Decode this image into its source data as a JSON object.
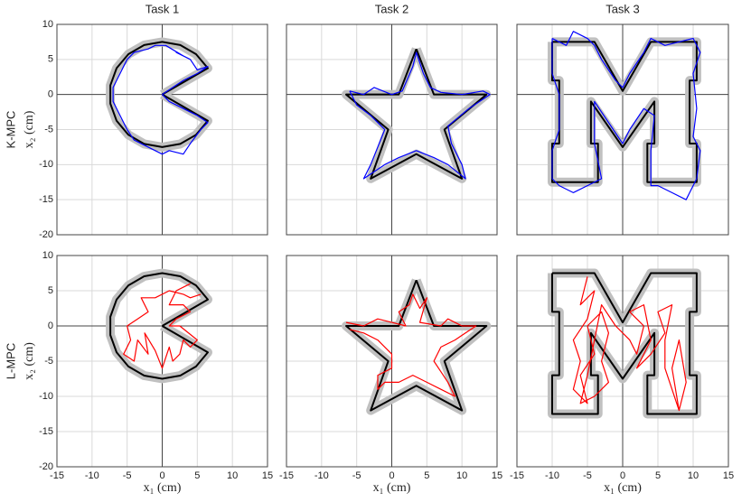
{
  "chart_data": [
    {
      "type": "line",
      "title": "Task 1",
      "row_label": "K-MPC",
      "ylabel": "x₂ (cm)",
      "xlim": [
        -15,
        15
      ],
      "ylim": [
        -20,
        10
      ],
      "xticks": [
        -15,
        -10,
        -5,
        0,
        5,
        10,
        15
      ],
      "yticks": [
        -20,
        -15,
        -10,
        -5,
        0,
        5,
        10
      ],
      "grid": true,
      "series": [
        {
          "color": "#000000",
          "band_color": "#c0c0c0",
          "x": [
            0,
            6.5,
            4.82,
            2.57,
            0,
            -2.57,
            -4.82,
            -6.5,
            -7.39,
            -7.39,
            -6.5,
            -4.82,
            -2.57,
            0,
            2.57,
            4.82,
            6.5,
            0
          ],
          "values": [
            0,
            3.75,
            5.75,
            7.05,
            7.5,
            7.05,
            5.75,
            3.75,
            1.3,
            -1.3,
            -3.75,
            -5.75,
            -7.05,
            -7.5,
            -7.05,
            -5.75,
            -3.75,
            0
          ]
        },
        {
          "color": "#0000ff",
          "x": [
            0,
            3,
            5,
            6.5,
            5,
            4,
            2,
            3,
            0.5,
            -1,
            -2,
            -4,
            -5,
            -6,
            -7,
            -7,
            -6,
            -5,
            -4,
            -2,
            0,
            1,
            3,
            4,
            5.5,
            6.5,
            5,
            3,
            1,
            0
          ],
          "values": [
            0,
            2,
            3,
            4,
            3.5,
            5,
            6,
            5.5,
            7,
            7,
            6.5,
            6,
            5,
            3,
            1,
            -1,
            -3,
            -5,
            -6.5,
            -7.5,
            -8.5,
            -8,
            -8.5,
            -7,
            -5,
            -4,
            -3,
            -2,
            -1,
            0
          ]
        }
      ]
    },
    {
      "type": "line",
      "title": "Task 2",
      "xlim": [
        -15,
        15
      ],
      "ylim": [
        -20,
        10
      ],
      "xticks": [
        -15,
        -10,
        -5,
        0,
        5,
        10,
        15
      ],
      "yticks": [
        -20,
        -15,
        -10,
        -5,
        0,
        5,
        10
      ],
      "grid": true,
      "series": [
        {
          "color": "#000000",
          "band_color": "#c0c0c0",
          "x": [
            3.5,
            6,
            13.5,
            7.5,
            10,
            3.5,
            -3,
            -0.5,
            -6.5,
            1,
            3.5
          ],
          "values": [
            6.5,
            0,
            0,
            -5,
            -12,
            -8.5,
            -12,
            -5,
            0,
            0,
            6.5
          ]
        },
        {
          "color": "#0000ff",
          "x": [
            -6,
            -4,
            -2.5,
            0,
            1.5,
            3,
            3.5,
            4.5,
            5.5,
            7,
            10,
            13,
            14,
            11,
            8,
            8.5,
            10,
            10.5,
            8,
            6,
            3.5,
            1,
            -1,
            -4,
            -3,
            -2,
            -1,
            -3,
            -5,
            -6
          ],
          "values": [
            0.5,
            0,
            1,
            0,
            0.5,
            4,
            6,
            3,
            1,
            0.3,
            0,
            0.5,
            0,
            -2,
            -4.5,
            -7,
            -10,
            -12,
            -10,
            -9,
            -8,
            -9,
            -10,
            -12,
            -10,
            -7.5,
            -5,
            -3,
            -1.5,
            0.5
          ]
        }
      ]
    },
    {
      "type": "line",
      "title": "Task 3",
      "xlim": [
        -15,
        15
      ],
      "ylim": [
        -20,
        10
      ],
      "xticks": [
        -15,
        -10,
        -5,
        0,
        5,
        10,
        15
      ],
      "yticks": [
        -20,
        -15,
        -10,
        -5,
        0,
        5,
        10
      ],
      "grid": true,
      "series": [
        {
          "color": "#000000",
          "band_color": "#c0c0c0",
          "x": [
            -10,
            -4,
            0,
            4,
            10.5,
            10.5,
            9.5,
            9.5,
            10.5,
            10.5,
            3.5,
            3.5,
            4.5,
            4.5,
            0,
            -4.5,
            -4.5,
            -3.5,
            -3.5,
            -10,
            -10,
            -9,
            -9,
            -10,
            -10
          ],
          "values": [
            7.5,
            7.5,
            0.5,
            7.5,
            7.5,
            2,
            2,
            -7,
            -7,
            -12.5,
            -12.5,
            -7,
            -7,
            -1,
            -7.5,
            -1,
            -7,
            -7,
            -12.5,
            -12.5,
            -7,
            -7,
            2,
            2,
            7.5
          ]
        },
        {
          "color": "#0000ff",
          "x": [
            -10,
            -8,
            -7,
            -5,
            -4,
            -3,
            -1,
            0,
            1,
            3,
            4,
            6,
            8,
            10,
            11,
            10,
            10.5,
            10,
            11,
            10.5,
            9,
            7,
            5,
            4,
            4,
            4.5,
            3,
            1,
            0,
            -2,
            -4,
            -4,
            -3,
            -5,
            -7,
            -9,
            -10,
            -10,
            -9,
            -9,
            -10,
            -10
          ],
          "values": [
            8,
            7,
            9,
            8,
            7,
            5,
            2,
            1,
            3,
            6,
            8,
            7,
            7.5,
            8,
            6,
            3,
            -2,
            -6,
            -8,
            -12,
            -15,
            -14,
            -13,
            -13,
            -8,
            -3,
            -2,
            -5,
            -7,
            -4,
            -1,
            -7,
            -12,
            -13,
            -14,
            -13,
            -12,
            -8,
            -5,
            0,
            3,
            8
          ]
        }
      ]
    },
    {
      "type": "line",
      "row_label": "L-MPC",
      "ylabel": "x₂ (cm)",
      "xlabel": "x₁ (cm)",
      "xlim": [
        -15,
        15
      ],
      "ylim": [
        -20,
        10
      ],
      "xticks": [
        -15,
        -10,
        -5,
        0,
        5,
        10,
        15
      ],
      "yticks": [
        -20,
        -15,
        -10,
        -5,
        0,
        5,
        10
      ],
      "grid": true,
      "series": [
        {
          "color": "#000000",
          "band_color": "#c0c0c0",
          "x": [
            0,
            6.5,
            4.82,
            2.57,
            0,
            -2.57,
            -4.82,
            -6.5,
            -7.39,
            -7.39,
            -6.5,
            -4.82,
            -2.57,
            0,
            2.57,
            4.82,
            6.5,
            0
          ],
          "values": [
            0,
            3.75,
            5.75,
            7.05,
            7.5,
            7.05,
            5.75,
            3.75,
            1.3,
            -1.3,
            -3.75,
            -5.75,
            -7.05,
            -7.5,
            -7.05,
            -5.75,
            -3.75,
            0
          ]
        },
        {
          "color": "#ff0000",
          "x": [
            5.5,
            4,
            3,
            1,
            -1,
            -3,
            -2,
            -3.5,
            -5,
            -4.5,
            -5.5,
            -4,
            -3.5,
            -2,
            -2.5,
            -1,
            0,
            1,
            1.5,
            2.5,
            3,
            4,
            5,
            2.5,
            1,
            2,
            4,
            3,
            1,
            2,
            4
          ],
          "values": [
            4.5,
            4,
            4.5,
            5,
            4,
            4,
            2,
            1,
            0,
            -2,
            -4,
            -5,
            -2,
            -4,
            -1,
            -3.5,
            -6,
            -3,
            -5,
            -4,
            -2,
            -3,
            -2,
            0,
            0,
            1,
            2,
            3,
            3,
            5,
            6
          ]
        }
      ]
    },
    {
      "type": "line",
      "xlabel": "x₁ (cm)",
      "xlim": [
        -15,
        15
      ],
      "ylim": [
        -20,
        10
      ],
      "xticks": [
        -15,
        -10,
        -5,
        0,
        5,
        10,
        15
      ],
      "yticks": [
        -20,
        -15,
        -10,
        -5,
        0,
        5,
        10
      ],
      "grid": true,
      "series": [
        {
          "color": "#000000",
          "band_color": "#c0c0c0",
          "x": [
            3.5,
            6,
            13.5,
            7.5,
            10,
            3.5,
            -3,
            -0.5,
            -6.5,
            1,
            3.5
          ],
          "values": [
            6.5,
            0,
            0,
            -5,
            -12,
            -8.5,
            -12,
            -5,
            0,
            0,
            6.5
          ]
        },
        {
          "color": "#ff0000",
          "x": [
            -6.5,
            -4,
            -2,
            0,
            2,
            1,
            2.5,
            3,
            4,
            5,
            4,
            7,
            8,
            10,
            12,
            9,
            7,
            6,
            7,
            8,
            9,
            7,
            5,
            3,
            1,
            -1,
            -2,
            -2,
            0,
            0,
            -2,
            -4,
            -6
          ],
          "values": [
            0.5,
            0,
            1,
            0.5,
            0,
            2,
            3,
            4.5,
            2.5,
            4,
            0.5,
            0,
            1,
            0,
            0,
            -2,
            -3,
            -5,
            -6.5,
            -8,
            -10,
            -9,
            -8,
            -7,
            -8,
            -8,
            -9,
            -7,
            -6,
            -4,
            -2,
            -1,
            -0.5
          ]
        }
      ]
    },
    {
      "type": "line",
      "xlabel": "x₁ (cm)",
      "xlim": [
        -15,
        15
      ],
      "ylim": [
        -20,
        10
      ],
      "xticks": [
        -15,
        -10,
        -5,
        0,
        5,
        10,
        15
      ],
      "yticks": [
        -20,
        -15,
        -10,
        -5,
        0,
        5,
        10
      ],
      "grid": true,
      "series": [
        {
          "color": "#000000",
          "band_color": "#c0c0c0",
          "x": [
            -10,
            -4,
            0,
            4,
            10.5,
            10.5,
            9.5,
            9.5,
            10.5,
            10.5,
            3.5,
            3.5,
            4.5,
            4.5,
            0,
            -4.5,
            -4.5,
            -3.5,
            -3.5,
            -10,
            -10,
            -9,
            -9,
            -10,
            -10
          ],
          "values": [
            7.5,
            7.5,
            0.5,
            7.5,
            7.5,
            2,
            2,
            -7,
            -7,
            -12.5,
            -12.5,
            -7,
            -7,
            -1,
            -7.5,
            -1,
            -7,
            -7,
            -12.5,
            -12.5,
            -7,
            -7,
            2,
            2,
            7.5
          ]
        },
        {
          "color": "#ff0000",
          "x": [
            -5,
            -6,
            -4,
            -5,
            -7,
            -6,
            -7,
            -5,
            -6,
            -4,
            -5,
            -3,
            -2,
            -3,
            -2,
            -4,
            -6,
            -5,
            -3,
            -1,
            1,
            2,
            3,
            1,
            3,
            4,
            2,
            4,
            6,
            5,
            7,
            6,
            6,
            7,
            8,
            7,
            8,
            9,
            8
          ],
          "values": [
            7,
            3,
            5,
            1,
            -2,
            -5,
            -9,
            -11,
            -7,
            -4,
            0,
            2,
            -1,
            -5,
            -8,
            -10,
            -11,
            -7,
            3,
            0,
            -2,
            -4,
            0,
            2,
            3,
            -2,
            -6,
            -4,
            -1,
            2,
            3,
            -2,
            -6,
            -9,
            -12,
            -6,
            -2,
            -8,
            -12
          ]
        }
      ]
    }
  ]
}
